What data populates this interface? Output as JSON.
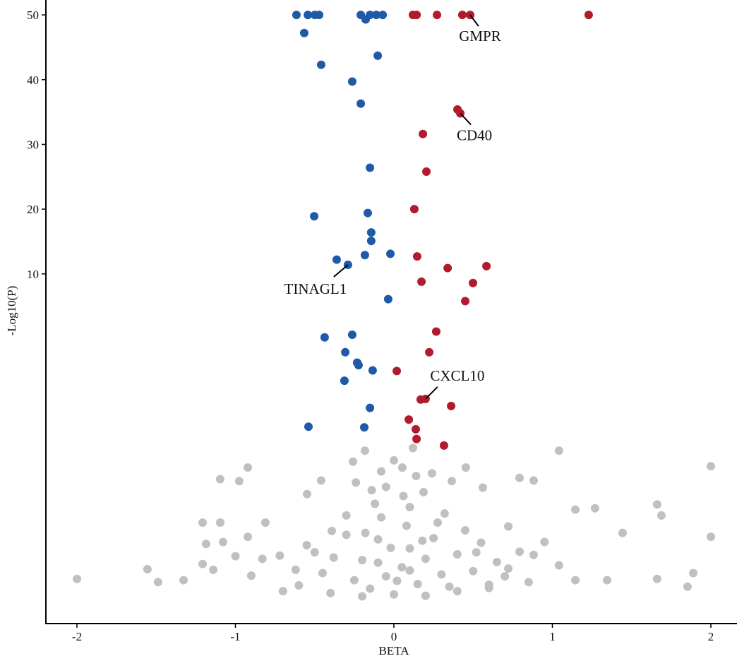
{
  "chart_data": {
    "type": "scatter",
    "xlabel": "BETA",
    "ylabel": "-Log10(P)",
    "xlim": [
      -2.196,
      2.165
    ],
    "ylim": [
      -44.0,
      52.3
    ],
    "xticks": [
      -2,
      -1,
      0,
      1,
      2
    ],
    "yticks": [
      10,
      20,
      30,
      40,
      50
    ],
    "series": [
      {
        "color": "#1f5aa6",
        "x": [
          -0.615,
          -0.543,
          -0.499,
          -0.472,
          -0.209,
          -0.151,
          -0.111,
          -0.071,
          -0.178,
          -0.566,
          -0.102,
          -0.459,
          -0.263,
          -0.209,
          -0.151,
          -0.503,
          -0.165,
          -0.143,
          -0.143,
          -0.022,
          -0.183,
          -0.361,
          -0.29,
          -0.036,
          -0.263,
          -0.437,
          -0.307,
          -0.232,
          -0.223,
          -0.134,
          -0.312,
          -0.151,
          -0.539,
          -0.187
        ],
        "values": [
          50,
          50,
          50,
          50,
          50,
          50,
          50,
          50,
          49.3,
          47.2,
          43.7,
          42.3,
          39.7,
          36.3,
          26.4,
          18.9,
          19.4,
          16.4,
          15.1,
          13.1,
          12.9,
          12.2,
          11.4,
          6.1,
          0.6,
          0.2,
          -2.1,
          -3.7,
          -4.1,
          -4.9,
          -6.5,
          -10.7,
          -13.6,
          -13.7
        ]
      },
      {
        "color": "#b01c2e",
        "x": [
          0.12,
          0.143,
          0.272,
          0.432,
          0.481,
          1.229,
          0.401,
          0.419,
          0.183,
          0.205,
          0.129,
          0.147,
          0.584,
          0.339,
          0.174,
          0.499,
          0.45,
          0.267,
          0.223,
          0.018,
          0.169,
          0.2,
          0.361,
          0.094,
          0.138,
          0.143,
          0.316
        ],
        "values": [
          50,
          50,
          50,
          50,
          50,
          50,
          35.4,
          34.8,
          31.6,
          25.8,
          20.0,
          12.7,
          11.2,
          10.9,
          8.8,
          8.6,
          5.8,
          1.1,
          -2.1,
          -5.0,
          -9.4,
          -9.3,
          -10.4,
          -12.5,
          -14.0,
          -15.5,
          -16.5
        ]
      },
      {
        "color": "#c0c0c0",
        "x": [
          -2.0,
          -1.555,
          -1.488,
          -1.327,
          -1.207,
          -1.207,
          -1.14,
          -1.185,
          -1.096,
          -1.096,
          -1.078,
          -0.976,
          -0.922,
          -0.922,
          -0.811,
          -0.548,
          -0.459,
          -0.392,
          -0.258,
          -0.183,
          -0.08,
          0,
          0.053,
          0.12,
          0.187,
          0.276,
          0.365,
          0.454,
          0.561,
          0.722,
          0.793,
          0.882,
          1.042,
          1.145,
          1.269,
          1.345,
          1.443,
          1.661,
          1.688,
          1.853,
          1.889,
          2.0,
          2.0,
          1.661,
          1.145,
          1.042,
          0.882,
          0.793,
          0.722,
          -0.83,
          -0.72,
          -0.62,
          -0.55,
          -0.45,
          -0.38,
          -0.3,
          -0.25,
          -0.2,
          -0.15,
          -0.1,
          -0.05,
          0.0,
          0.05,
          0.1,
          0.15,
          0.2,
          0.25,
          0.3,
          0.35,
          0.4,
          0.45,
          0.5,
          0.55,
          0.6,
          0.65,
          -0.7,
          -0.6,
          -0.4,
          -0.2,
          0.2,
          0.4,
          0.6,
          -0.12,
          -0.08,
          0.08,
          0.1,
          -0.18,
          0.18,
          -0.3,
          0.32,
          -0.05,
          0.06,
          -0.1,
          0.1,
          -0.02,
          0.02,
          0.7,
          -0.9,
          -1.0,
          0.95,
          0.85,
          -0.5,
          0.52,
          0.24,
          -0.24,
          0.14,
          -0.14
        ],
        "values": [
          -37.1,
          -35.6,
          -37.6,
          -37.3,
          -28.4,
          -34.8,
          -35.7,
          -31.7,
          -21.7,
          -28.4,
          -31.4,
          -22.0,
          -19.9,
          -30.6,
          -28.4,
          -24.0,
          -21.9,
          -29.7,
          -19.0,
          -17.3,
          -20.5,
          -18.8,
          -19.9,
          -16.9,
          -23.7,
          -28.4,
          -22.0,
          -19.9,
          -23.0,
          -29.0,
          -21.5,
          -21.9,
          -17.3,
          -26.4,
          -26.2,
          -37.3,
          -30.0,
          -25.6,
          -27.3,
          -38.3,
          -36.2,
          -19.7,
          -30.6,
          -37.1,
          -37.3,
          -35.0,
          -33.4,
          -32.9,
          -35.5,
          -34.0,
          -33.5,
          -35.7,
          -31.9,
          -36.2,
          -33.8,
          -30.3,
          -37.3,
          -34.2,
          -38.6,
          -31.0,
          -36.7,
          -39.5,
          -35.3,
          -32.4,
          -37.9,
          -34.0,
          -30.8,
          -36.4,
          -38.3,
          -33.3,
          -29.6,
          -35.9,
          -31.5,
          -38.0,
          -34.5,
          -39.0,
          -38.1,
          -39.3,
          -39.8,
          -39.7,
          -39.0,
          -38.5,
          -25.5,
          -27.6,
          -28.9,
          -26.0,
          -30.0,
          -31.2,
          -27.3,
          -27.0,
          -22.9,
          -24.3,
          -34.6,
          -35.8,
          -32.3,
          -37.4,
          -36.7,
          -36.6,
          -33.6,
          -31.4,
          -37.6,
          -33.0,
          -33.0,
          -20.8,
          -22.2,
          -21.2,
          -23.4
        ]
      }
    ],
    "annotations": [
      {
        "text": "GMPR",
        "x": 0.481,
        "y": 50
      },
      {
        "text": "CD40",
        "x": 0.419,
        "y": 34.8
      },
      {
        "text": "TINAGL1",
        "x": -0.29,
        "y": 11.4
      },
      {
        "text": "CXCL10",
        "x": 0.2,
        "y": -9.3
      }
    ]
  }
}
